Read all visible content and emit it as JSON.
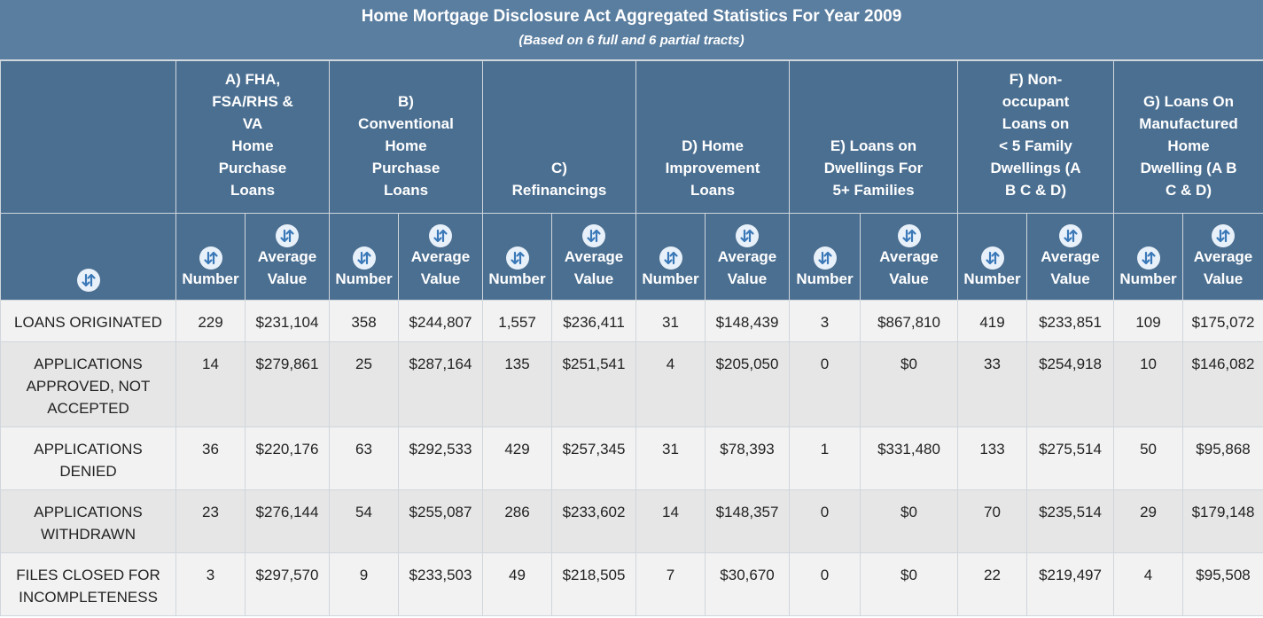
{
  "header": {
    "title": "Home Mortgage Disclosure Act Aggregated Statistics For Year 2009",
    "subtitle": "(Based on 6 full and 6 partial tracts)"
  },
  "columns": {
    "groups": [
      {
        "label_lines": [
          "A) FHA,",
          "FSA/RHS &",
          "VA",
          "Home",
          "Purchase",
          "Loans"
        ]
      },
      {
        "label_lines": [
          "B)",
          "Conventional",
          "Home",
          "Purchase",
          "Loans"
        ]
      },
      {
        "label_lines": [
          "C)",
          "Refinancings"
        ]
      },
      {
        "label_lines": [
          "D) Home",
          "Improvement",
          "Loans"
        ]
      },
      {
        "label_lines": [
          "E) Loans on",
          "Dwellings For",
          "5+ Families"
        ]
      },
      {
        "label_lines": [
          "F) Non-",
          "occupant",
          "Loans on",
          "< 5 Family",
          "Dwellings (A",
          "B C & D)"
        ]
      },
      {
        "label_lines": [
          "G) Loans On",
          "Manufactured",
          "Home",
          "Dwelling (A B",
          "C & D)"
        ]
      }
    ],
    "number_label": "Number",
    "average_label_lines": [
      "Average",
      "Value"
    ],
    "sort_icon": "sort-arrows-icon"
  },
  "rows": [
    {
      "label": "LOANS ORIGINATED",
      "cells": [
        "229",
        "$231,104",
        "358",
        "$244,807",
        "1,557",
        "$236,411",
        "31",
        "$148,439",
        "3",
        "$867,810",
        "419",
        "$233,851",
        "109",
        "$175,072"
      ]
    },
    {
      "label": "APPLICATIONS APPROVED, NOT ACCEPTED",
      "cells": [
        "14",
        "$279,861",
        "25",
        "$287,164",
        "135",
        "$251,541",
        "4",
        "$205,050",
        "0",
        "$0",
        "33",
        "$254,918",
        "10",
        "$146,082"
      ]
    },
    {
      "label": "APPLICATIONS DENIED",
      "cells": [
        "36",
        "$220,176",
        "63",
        "$292,533",
        "429",
        "$257,345",
        "31",
        "$78,393",
        "1",
        "$331,480",
        "133",
        "$275,514",
        "50",
        "$95,868"
      ]
    },
    {
      "label": "APPLICATIONS WITHDRAWN",
      "cells": [
        "23",
        "$276,144",
        "54",
        "$255,087",
        "286",
        "$233,602",
        "14",
        "$148,357",
        "0",
        "$0",
        "70",
        "$235,514",
        "29",
        "$179,148"
      ]
    },
    {
      "label": "FILES CLOSED FOR INCOMPLETENESS",
      "cells": [
        "3",
        "$297,570",
        "9",
        "$233,503",
        "49",
        "$218,505",
        "7",
        "$30,670",
        "0",
        "$0",
        "22",
        "$219,497",
        "4",
        "$95,508"
      ]
    }
  ],
  "colors": {
    "title_bg": "#5a7ea0",
    "header_bg": "#4b6f91",
    "header_text": "#ffffff",
    "icon_bg": "#e8f1fa",
    "icon_fg": "#3a78b8",
    "row_odd": "#f2f2f2",
    "row_even": "#e6e6e6"
  }
}
